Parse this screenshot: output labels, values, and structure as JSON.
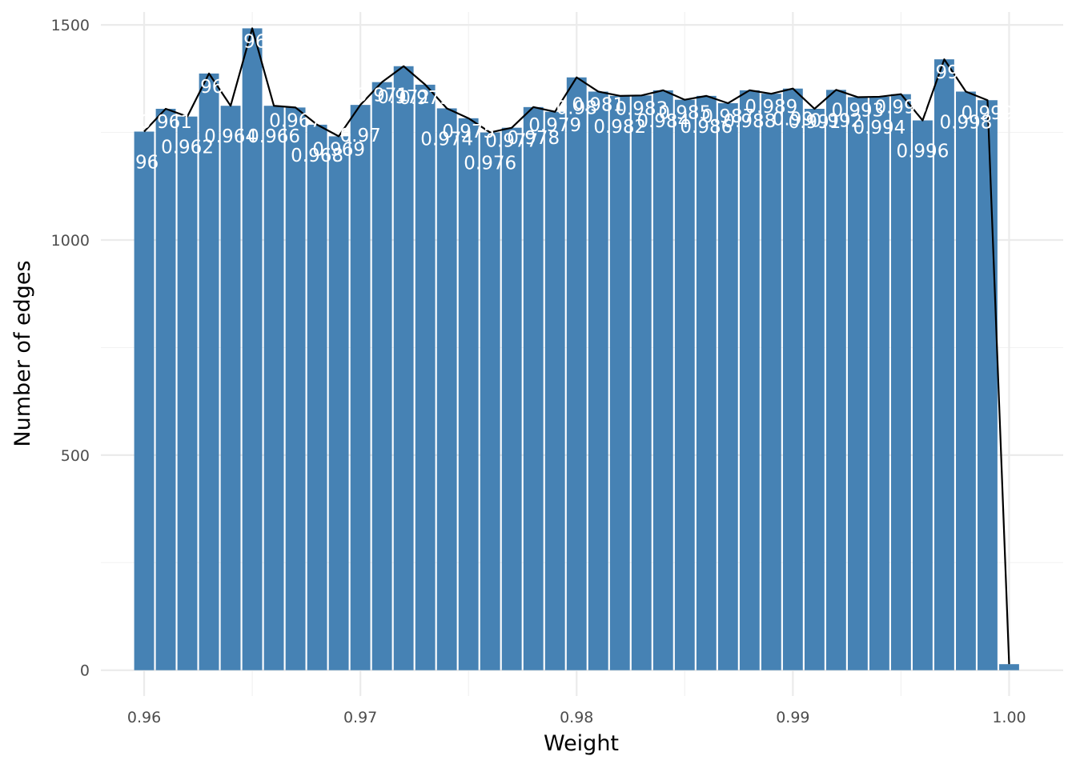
{
  "chart_data": {
    "type": "bar",
    "title": "",
    "xlabel": "Weight",
    "ylabel": "Number of edges",
    "xlim": [
      0.958,
      1.0025
    ],
    "ylim": [
      -60,
      1530
    ],
    "x_ticks": [
      0.96,
      0.97,
      0.98,
      0.99,
      1.0
    ],
    "x_tick_labels": [
      "0.96",
      "0.97",
      "0.98",
      "0.99",
      "1.00"
    ],
    "y_ticks": [
      0,
      500,
      1000,
      1500
    ],
    "y_tick_labels": [
      "0",
      "500",
      "1000",
      "1500"
    ],
    "grid": true,
    "bar_width": 0.00092,
    "bar_color": "#4682b4",
    "line_color": "#000000",
    "x": [
      0.96,
      0.961,
      0.962,
      0.963,
      0.964,
      0.965,
      0.966,
      0.967,
      0.968,
      0.969,
      0.97,
      0.971,
      0.972,
      0.973,
      0.974,
      0.975,
      0.976,
      0.977,
      0.978,
      0.979,
      0.98,
      0.981,
      0.982,
      0.983,
      0.984,
      0.985,
      0.986,
      0.987,
      0.988,
      0.989,
      0.99,
      0.991,
      0.992,
      0.993,
      0.994,
      0.995,
      0.996,
      0.997,
      0.998,
      0.999,
      1.0
    ],
    "values": [
      1252,
      1305,
      1287,
      1387,
      1312,
      1492,
      1312,
      1308,
      1268,
      1241,
      1314,
      1367,
      1404,
      1361,
      1306,
      1283,
      1250,
      1261,
      1309,
      1298,
      1378,
      1345,
      1335,
      1336,
      1348,
      1326,
      1335,
      1318,
      1348,
      1340,
      1352,
      1305,
      1349,
      1332,
      1333,
      1339,
      1278,
      1420,
      1345,
      1325,
      14
    ],
    "labels": [
      {
        "x": 0.96,
        "text": ".96"
      },
      {
        "x": 0.961,
        "text": "0.961"
      },
      {
        "x": 0.962,
        "text": "0.962"
      },
      {
        "x": 0.963,
        "text": "0.963"
      },
      {
        "x": 0.964,
        "text": "0.964"
      },
      {
        "x": 0.965,
        "text": "0.965"
      },
      {
        "x": 0.966,
        "text": "0.966"
      },
      {
        "x": 0.967,
        "text": "0.967"
      },
      {
        "x": 0.968,
        "text": "0.968"
      },
      {
        "x": 0.969,
        "text": "0.969"
      },
      {
        "x": 0.97,
        "text": "0.97"
      },
      {
        "x": 0.971,
        "text": "0.971"
      },
      {
        "x": 0.972,
        "text": "0.972"
      },
      {
        "x": 0.973,
        "text": "0.973"
      },
      {
        "x": 0.974,
        "text": "0.974"
      },
      {
        "x": 0.975,
        "text": "0.975"
      },
      {
        "x": 0.976,
        "text": "0.976"
      },
      {
        "x": 0.977,
        "text": "0.977"
      },
      {
        "x": 0.978,
        "text": "0.978"
      },
      {
        "x": 0.979,
        "text": "0.979"
      },
      {
        "x": 0.98,
        "text": "0.98"
      },
      {
        "x": 0.981,
        "text": "0.981"
      },
      {
        "x": 0.982,
        "text": "0.982"
      },
      {
        "x": 0.983,
        "text": "0.983"
      },
      {
        "x": 0.984,
        "text": "0.984"
      },
      {
        "x": 0.985,
        "text": "0.985"
      },
      {
        "x": 0.986,
        "text": "0.986"
      },
      {
        "x": 0.987,
        "text": "0.987"
      },
      {
        "x": 0.988,
        "text": "0.988"
      },
      {
        "x": 0.989,
        "text": "0.989"
      },
      {
        "x": 0.99,
        "text": "0.99"
      },
      {
        "x": 0.991,
        "text": "0.991"
      },
      {
        "x": 0.992,
        "text": "0.992"
      },
      {
        "x": 0.993,
        "text": "0.993"
      },
      {
        "x": 0.994,
        "text": "0.994"
      },
      {
        "x": 0.995,
        "text": "0.995"
      },
      {
        "x": 0.996,
        "text": "0.996"
      },
      {
        "x": 0.997,
        "text": "0.997"
      },
      {
        "x": 0.998,
        "text": "0.998"
      },
      {
        "x": 0.999,
        "text": "0.999"
      }
    ]
  }
}
